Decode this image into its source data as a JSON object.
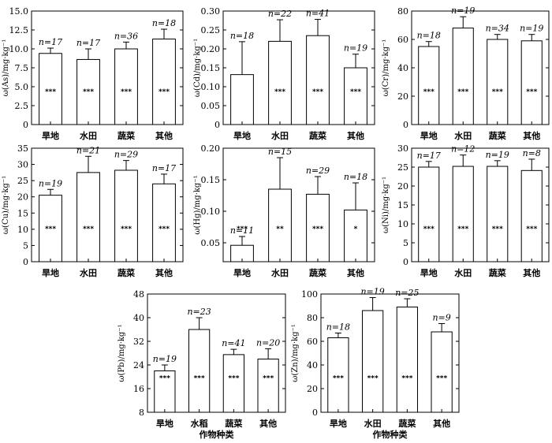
{
  "chart_data": [
    {
      "type": "bar",
      "ylabel": "ω(As)/mg·kg⁻¹",
      "categories": [
        "旱地",
        "水田",
        "蔬菜",
        "其他"
      ],
      "values": [
        9.4,
        8.6,
        10.0,
        11.3
      ],
      "errors": [
        0.7,
        1.4,
        0.9,
        1.3
      ],
      "n_labels": [
        "n=17",
        "n=17",
        "n=36",
        "n=18"
      ],
      "sig": [
        "***",
        "***",
        "***",
        "***"
      ],
      "ylim": [
        0,
        15
      ],
      "yticks": [
        "0",
        "2.5",
        "5.0",
        "7.5",
        "10.0",
        "12.5",
        "15.0"
      ],
      "xlabel": ""
    },
    {
      "type": "bar",
      "ylabel": "ω(Cd)/mg·kg⁻¹",
      "categories": [
        "旱地",
        "水田",
        "蔬菜",
        "其他"
      ],
      "values": [
        0.132,
        0.22,
        0.235,
        0.15
      ],
      "errors": [
        0.087,
        0.057,
        0.043,
        0.036
      ],
      "n_labels": [
        "n=18",
        "n=22",
        "n=41",
        "n=19"
      ],
      "sig": [
        "",
        "***",
        "***",
        "***"
      ],
      "ylim": [
        0,
        0.3
      ],
      "yticks": [
        "0",
        "0.05",
        "0.10",
        "0.15",
        "0.20",
        "0.25",
        "0.30"
      ],
      "xlabel": ""
    },
    {
      "type": "bar",
      "ylabel": "ω(Cr)/mg·kg⁻¹",
      "categories": [
        "旱地",
        "水田",
        "蔬菜",
        "其他"
      ],
      "values": [
        55,
        68,
        60,
        59
      ],
      "errors": [
        3.5,
        8,
        3.5,
        4.5
      ],
      "n_labels": [
        "n=18",
        "n=19",
        "n=34",
        "n=19"
      ],
      "sig": [
        "***",
        "***",
        "***",
        "***"
      ],
      "ylim": [
        0,
        80
      ],
      "yticks": [
        "0",
        "20",
        "40",
        "60",
        "80"
      ],
      "xlabel": ""
    },
    {
      "type": "bar",
      "ylabel": "ω(Cu)/mg·kg⁻¹",
      "categories": [
        "旱地",
        "水田",
        "蔬菜",
        "其他"
      ],
      "values": [
        20.5,
        27.5,
        28.2,
        24.0
      ],
      "errors": [
        1.8,
        5.0,
        3.0,
        3.0
      ],
      "n_labels": [
        "n=19",
        "n=21",
        "n=29",
        "n=17"
      ],
      "sig": [
        "***",
        "***",
        "***",
        "***"
      ],
      "ylim": [
        0,
        35
      ],
      "yticks": [
        "0",
        "5",
        "10",
        "15",
        "20",
        "25",
        "30",
        "35"
      ],
      "xlabel": ""
    },
    {
      "type": "bar",
      "ylabel": "ω(Hg)/mg·kg⁻¹",
      "categories": [
        "旱地",
        "水田",
        "蔬菜",
        "其他"
      ],
      "values": [
        0.046,
        0.135,
        0.127,
        0.102
      ],
      "errors": [
        0.014,
        0.05,
        0.028,
        0.043
      ],
      "n_labels": [
        "n=11",
        "n=15",
        "n=29",
        "n=18"
      ],
      "sig": [
        "***",
        "**",
        "***",
        "*"
      ],
      "ylim": [
        0.02,
        0.2
      ],
      "yticks": [
        "0.05",
        "0.10",
        "0.15",
        "0.20"
      ],
      "xlabel": ""
    },
    {
      "type": "bar",
      "ylabel": "ω(Ni)/mg·kg⁻¹",
      "categories": [
        "旱地",
        "水田",
        "蔬菜",
        "其他"
      ],
      "values": [
        25.0,
        25.2,
        25.2,
        24.1
      ],
      "errors": [
        1.5,
        3.0,
        1.5,
        3.0
      ],
      "n_labels": [
        "n=17",
        "n=12",
        "n=19",
        "n=8"
      ],
      "sig": [
        "***",
        "***",
        "***",
        "***"
      ],
      "ylim": [
        0,
        30
      ],
      "yticks": [
        "0",
        "5",
        "10",
        "15",
        "20",
        "25",
        "30"
      ],
      "xlabel": ""
    },
    {
      "type": "bar",
      "ylabel": "ω(Pb)/mg·kg⁻¹",
      "categories": [
        "旱地",
        "水稻",
        "蔬菜",
        "其他"
      ],
      "values": [
        22.0,
        36.0,
        27.5,
        26.0
      ],
      "errors": [
        2.0,
        4.0,
        1.8,
        3.5
      ],
      "n_labels": [
        "n=19",
        "n=23",
        "n=41",
        "n=20"
      ],
      "sig": [
        "***",
        "***",
        "***",
        "***"
      ],
      "ylim": [
        8,
        48
      ],
      "yticks": [
        "8",
        "16",
        "24",
        "32",
        "40",
        "48"
      ],
      "xlabel": "作物种类"
    },
    {
      "type": "bar",
      "ylabel": "ω(Zn)/mg·kg⁻¹",
      "categories": [
        "旱地",
        "水田",
        "蔬菜",
        "其他"
      ],
      "values": [
        63,
        86,
        89,
        68
      ],
      "errors": [
        4,
        11,
        7,
        7
      ],
      "n_labels": [
        "n=18",
        "n=19",
        "n=25",
        "n=9"
      ],
      "sig": [
        "***",
        "***",
        "***",
        "***"
      ],
      "ylim": [
        0,
        100
      ],
      "yticks": [
        "0",
        "20",
        "40",
        "60",
        "80",
        "100"
      ],
      "xlabel": "作物种类"
    }
  ]
}
